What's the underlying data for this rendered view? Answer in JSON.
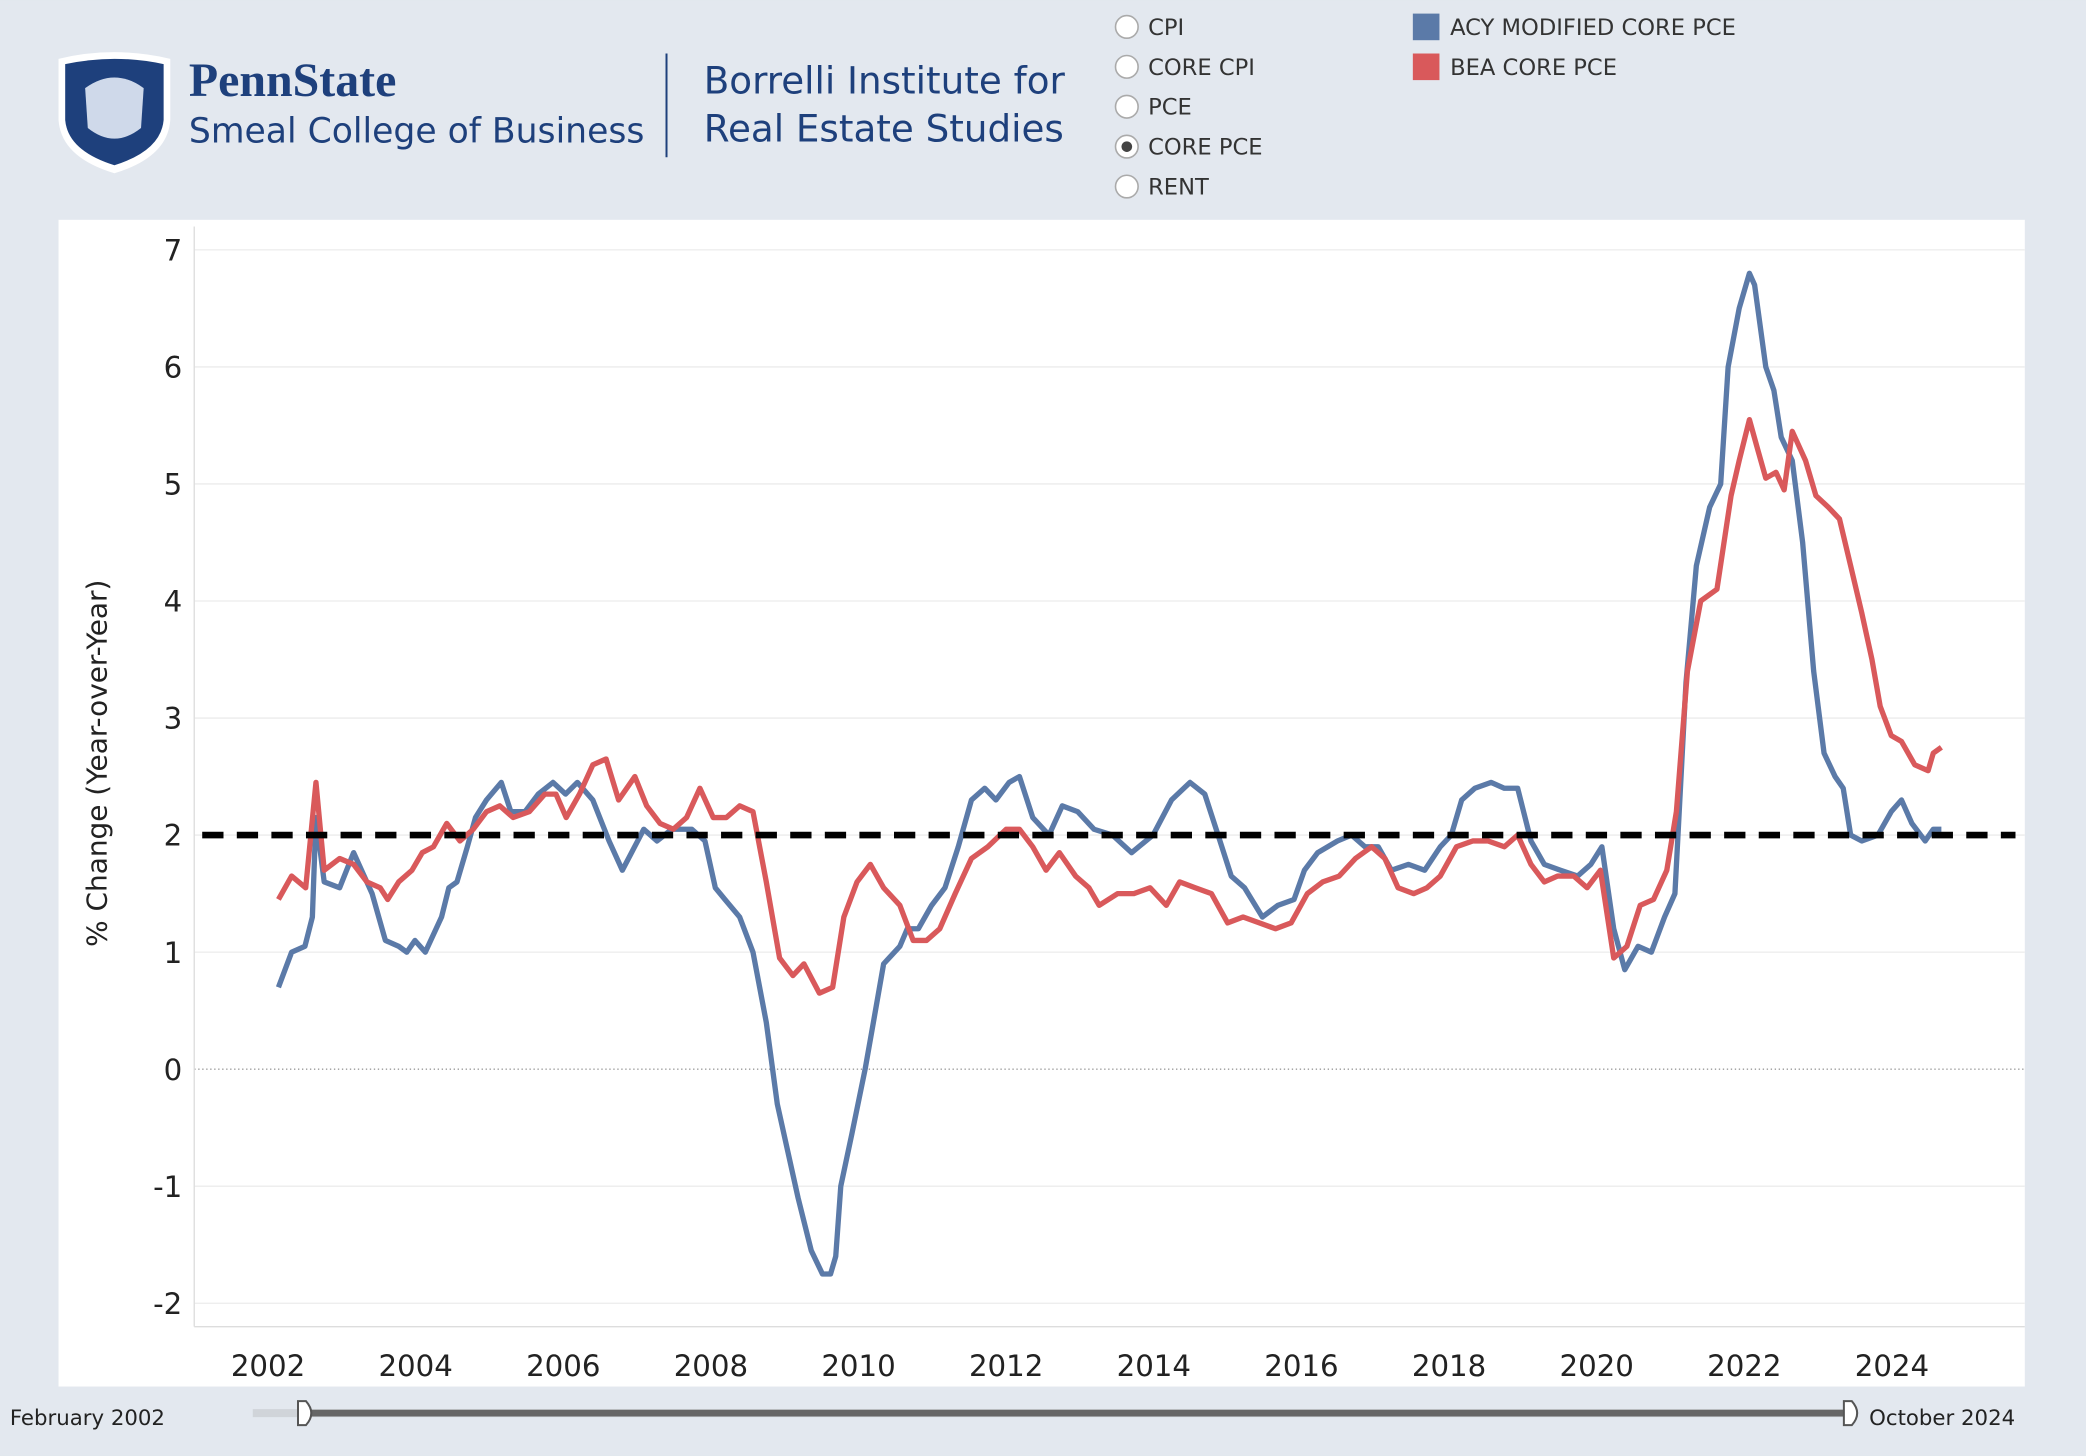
{
  "header": {
    "brand": "PennState",
    "college": "Smeal College of Business",
    "institute_line1": "Borrelli Institute for",
    "institute_line2": "Real Estate Studies"
  },
  "controls": {
    "options": [
      "CPI",
      "CORE CPI",
      "PCE",
      "CORE PCE",
      "RENT"
    ],
    "selected_index": 3
  },
  "slider": {
    "start": "February 2002",
    "end": "October 2024"
  },
  "chart_data": {
    "type": "line",
    "ylabel": "% Change (Year-over-Year)",
    "xlim": [
      2001,
      2025.8
    ],
    "ylim": [
      -2.2,
      7.2
    ],
    "xticks": [
      2002,
      2004,
      2006,
      2008,
      2010,
      2012,
      2014,
      2016,
      2018,
      2020,
      2022,
      2024
    ],
    "yticks": [
      -2,
      -1,
      0,
      1,
      2,
      3,
      4,
      5,
      6,
      7
    ],
    "grid": true,
    "reference_line": {
      "value": 2,
      "color": "#000000"
    },
    "series": [
      {
        "name": "ACY MODIFIED CORE PCE",
        "color": "#5b7aa8",
        "x": [
          2002.14,
          2002.32,
          2002.5,
          2002.6,
          2002.65,
          2002.76,
          2002.97,
          2003.16,
          2003.41,
          2003.59,
          2003.77,
          2003.88,
          2003.99,
          2004.13,
          2004.35,
          2004.45,
          2004.56,
          2004.7,
          2004.81,
          2004.96,
          2005.16,
          2005.29,
          2005.48,
          2005.66,
          2005.86,
          2006.03,
          2006.19,
          2006.4,
          2006.62,
          2006.8,
          2007.09,
          2007.27,
          2007.47,
          2007.74,
          2007.92,
          2008.06,
          2008.19,
          2008.39,
          2008.57,
          2008.75,
          2008.9,
          2009.04,
          2009.18,
          2009.36,
          2009.51,
          2009.62,
          2009.69,
          2009.76,
          2009.91,
          2010.09,
          2010.2,
          2010.34,
          2010.56,
          2010.66,
          2010.81,
          2010.99,
          2011.17,
          2011.35,
          2011.53,
          2011.71,
          2011.86,
          2012.04,
          2012.18,
          2012.36,
          2012.58,
          2012.76,
          2012.97,
          2013.19,
          2013.44,
          2013.7,
          2013.99,
          2014.24,
          2014.49,
          2014.69,
          2014.87,
          2015.05,
          2015.23,
          2015.47,
          2015.68,
          2015.9,
          2016.04,
          2016.22,
          2016.49,
          2016.68,
          2016.86,
          2017.04,
          2017.22,
          2017.45,
          2017.67,
          2017.88,
          2018.03,
          2018.17,
          2018.35,
          2018.57,
          2018.75,
          2018.93,
          2019.11,
          2019.29,
          2019.51,
          2019.74,
          2019.92,
          2020.07,
          2020.23,
          2020.38,
          2020.56,
          2020.74,
          2020.92,
          2021.06,
          2021.21,
          2021.35,
          2021.53,
          2021.68,
          2021.78,
          2021.93,
          2022.07,
          2022.14,
          2022.29,
          2022.4,
          2022.5,
          2022.65,
          2022.79,
          2022.94,
          2023.08,
          2023.23,
          2023.34,
          2023.44,
          2023.59,
          2023.81,
          2023.99,
          2024.13,
          2024.27,
          2024.45,
          2024.56,
          2024.67
        ],
        "values": [
          0.7,
          1.0,
          1.05,
          1.3,
          2.15,
          1.6,
          1.55,
          1.85,
          1.5,
          1.1,
          1.05,
          1.0,
          1.1,
          1.0,
          1.3,
          1.55,
          1.6,
          1.9,
          2.15,
          2.3,
          2.45,
          2.2,
          2.2,
          2.35,
          2.45,
          2.35,
          2.45,
          2.3,
          1.95,
          1.7,
          2.05,
          1.95,
          2.05,
          2.05,
          1.95,
          1.55,
          1.45,
          1.3,
          1.0,
          0.4,
          -0.3,
          -0.7,
          -1.1,
          -1.55,
          -1.75,
          -1.75,
          -1.6,
          -1.0,
          -0.55,
          0.0,
          0.4,
          0.9,
          1.05,
          1.2,
          1.2,
          1.4,
          1.55,
          1.9,
          2.3,
          2.4,
          2.3,
          2.45,
          2.5,
          2.15,
          2.0,
          2.25,
          2.2,
          2.05,
          2.0,
          1.85,
          2.0,
          2.3,
          2.45,
          2.35,
          2.0,
          1.65,
          1.55,
          1.3,
          1.4,
          1.45,
          1.7,
          1.85,
          1.95,
          2.0,
          1.9,
          1.9,
          1.7,
          1.75,
          1.7,
          1.9,
          2.0,
          2.3,
          2.4,
          2.45,
          2.4,
          2.4,
          1.95,
          1.75,
          1.7,
          1.65,
          1.75,
          1.9,
          1.2,
          0.85,
          1.05,
          1.0,
          1.3,
          1.5,
          3.3,
          4.3,
          4.8,
          5.0,
          6.0,
          6.5,
          6.8,
          6.7,
          6.0,
          5.8,
          5.4,
          5.2,
          4.5,
          3.4,
          2.7,
          2.5,
          2.4,
          2.0,
          1.95,
          2.0,
          2.2,
          2.3,
          2.1,
          1.95,
          2.05,
          2.05
        ]
      },
      {
        "name": "BEA CORE PCE",
        "color": "#d9595b",
        "x": [
          2002.14,
          2002.32,
          2002.51,
          2002.65,
          2002.76,
          2002.97,
          2003.16,
          2003.34,
          2003.52,
          2003.62,
          2003.77,
          2003.95,
          2004.09,
          2004.24,
          2004.42,
          2004.6,
          2004.78,
          2004.96,
          2005.14,
          2005.32,
          2005.54,
          2005.75,
          2005.9,
          2006.04,
          2006.22,
          2006.4,
          2006.58,
          2006.75,
          2006.97,
          2007.13,
          2007.31,
          2007.49,
          2007.67,
          2007.85,
          2008.03,
          2008.21,
          2008.39,
          2008.57,
          2008.75,
          2008.93,
          2009.11,
          2009.26,
          2009.47,
          2009.65,
          2009.8,
          2009.98,
          2010.16,
          2010.34,
          2010.56,
          2010.74,
          2010.92,
          2011.1,
          2011.31,
          2011.53,
          2011.75,
          2012.0,
          2012.18,
          2012.36,
          2012.54,
          2012.72,
          2012.94,
          2013.12,
          2013.26,
          2013.51,
          2013.73,
          2013.95,
          2014.17,
          2014.35,
          2014.56,
          2014.78,
          2015.0,
          2015.21,
          2015.43,
          2015.65,
          2015.86,
          2016.08,
          2016.29,
          2016.51,
          2016.73,
          2016.95,
          2017.13,
          2017.31,
          2017.52,
          2017.7,
          2017.88,
          2018.1,
          2018.32,
          2018.53,
          2018.75,
          2018.93,
          2019.11,
          2019.29,
          2019.47,
          2019.69,
          2019.87,
          2020.05,
          2020.23,
          2020.41,
          2020.59,
          2020.77,
          2020.95,
          2021.08,
          2021.23,
          2021.41,
          2021.63,
          2021.82,
          2021.93,
          2022.07,
          2022.18,
          2022.29,
          2022.43,
          2022.54,
          2022.65,
          2022.83,
          2022.97,
          2023.14,
          2023.29,
          2023.44,
          2023.59,
          2023.73,
          2023.84,
          2023.99,
          2024.13,
          2024.31,
          2024.49,
          2024.56,
          2024.67
        ],
        "values": [
          1.45,
          1.65,
          1.55,
          2.45,
          1.7,
          1.8,
          1.75,
          1.6,
          1.55,
          1.45,
          1.6,
          1.7,
          1.85,
          1.9,
          2.1,
          1.95,
          2.05,
          2.2,
          2.25,
          2.15,
          2.2,
          2.35,
          2.35,
          2.15,
          2.35,
          2.6,
          2.65,
          2.3,
          2.5,
          2.25,
          2.1,
          2.05,
          2.15,
          2.4,
          2.15,
          2.15,
          2.25,
          2.2,
          1.6,
          0.95,
          0.8,
          0.9,
          0.65,
          0.7,
          1.3,
          1.6,
          1.75,
          1.55,
          1.4,
          1.1,
          1.1,
          1.2,
          1.5,
          1.8,
          1.9,
          2.05,
          2.05,
          1.9,
          1.7,
          1.85,
          1.65,
          1.55,
          1.4,
          1.5,
          1.5,
          1.55,
          1.4,
          1.6,
          1.55,
          1.5,
          1.25,
          1.3,
          1.25,
          1.2,
          1.25,
          1.5,
          1.6,
          1.65,
          1.8,
          1.9,
          1.8,
          1.55,
          1.5,
          1.55,
          1.65,
          1.9,
          1.95,
          1.95,
          1.9,
          2.0,
          1.75,
          1.6,
          1.65,
          1.65,
          1.55,
          1.7,
          0.95,
          1.05,
          1.4,
          1.45,
          1.7,
          2.2,
          3.4,
          4.0,
          4.1,
          4.9,
          5.2,
          5.55,
          5.3,
          5.05,
          5.1,
          4.95,
          5.45,
          5.2,
          4.9,
          4.8,
          4.7,
          4.3,
          3.9,
          3.5,
          3.1,
          2.85,
          2.8,
          2.6,
          2.55,
          2.7,
          2.75
        ]
      }
    ]
  }
}
